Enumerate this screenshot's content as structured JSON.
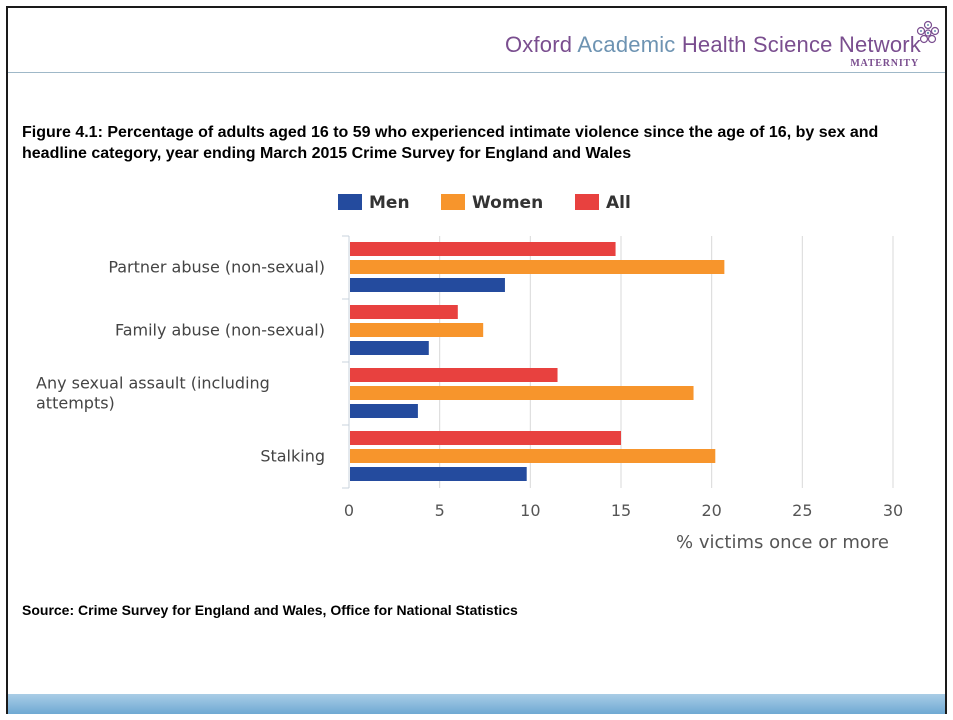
{
  "logo": {
    "org_part1": "Oxford ",
    "org_part2": "Academic ",
    "org_part3": "Health Science Network",
    "subtitle": "MATERNITY"
  },
  "figure_title": "Figure 4.1: Percentage of adults aged 16 to 59 who experienced intimate violence since the age of 16, by sex and headline category, year ending March 2015 Crime Survey for England and Wales",
  "source": "Source: Crime Survey for England and Wales, Office for National Statistics",
  "chart_data": {
    "type": "bar",
    "orientation": "horizontal",
    "categories": [
      [
        "Partner abuse (non-sexual)"
      ],
      [
        "Family abuse (non-sexual)"
      ],
      [
        "Any sexual assault (including",
        "attempts)"
      ],
      [
        "Stalking"
      ]
    ],
    "series": [
      {
        "name": "All",
        "color": "#e8413f",
        "values": [
          14.7,
          6.0,
          11.5,
          15.0
        ]
      },
      {
        "name": "Women",
        "color": "#f7952c",
        "values": [
          20.7,
          7.4,
          19.0,
          20.2
        ]
      },
      {
        "name": "Men",
        "color": "#244b9e",
        "values": [
          8.6,
          4.4,
          3.8,
          9.8
        ]
      }
    ],
    "legend_order": [
      "Men",
      "Women",
      "All"
    ],
    "legend_position": "top",
    "xlabel": "% victims once or more",
    "xlim": [
      0,
      30
    ],
    "xticks": [
      0,
      5,
      10,
      15,
      20,
      25,
      30
    ],
    "grid": true
  }
}
